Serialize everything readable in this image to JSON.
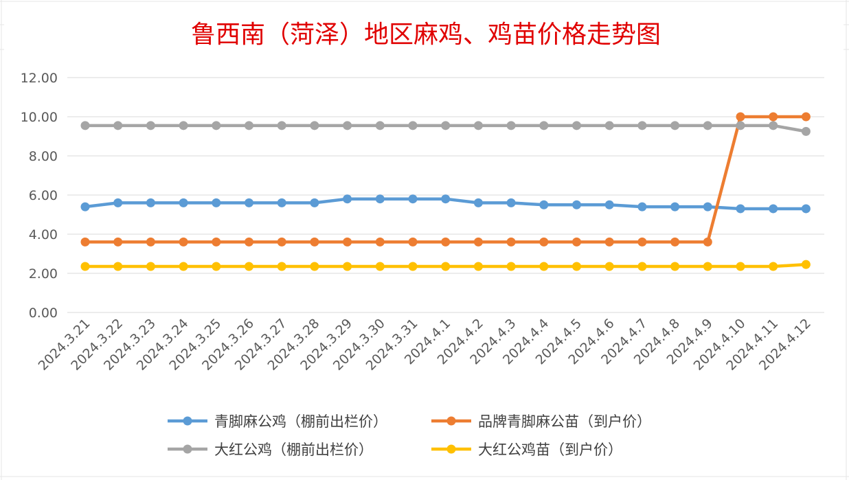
{
  "chart_data": {
    "type": "line",
    "title": "鲁西南（菏泽）地区麻鸡、鸡苗价格走势图",
    "xlabel": "",
    "ylabel": "",
    "ylim": [
      0,
      12
    ],
    "yticks": [
      "0.00",
      "2.00",
      "4.00",
      "6.00",
      "8.00",
      "10.00",
      "12.00"
    ],
    "grid": true,
    "legend_position": "bottom",
    "categories": [
      "2024.3.21",
      "2024.3.22",
      "2024.3.23",
      "2024.3.24",
      "2024.3.25",
      "2024.3.26",
      "2024.3.27",
      "2024.3.28",
      "2024.3.29",
      "2024.3.30",
      "2024.3.31",
      "2024.4.1",
      "2024.4.2",
      "2024.4.3",
      "2024.4.4",
      "2024.4.5",
      "2024.4.6",
      "2024.4.7",
      "2024.4.8",
      "2024.4.9",
      "2024.4.10",
      "2024.4.11",
      "2024.4.12"
    ],
    "series": [
      {
        "name": "青脚麻公鸡（棚前出栏价）",
        "color": "#5b9bd5",
        "values": [
          5.4,
          5.6,
          5.6,
          5.6,
          5.6,
          5.6,
          5.6,
          5.6,
          5.8,
          5.8,
          5.8,
          5.8,
          5.6,
          5.6,
          5.5,
          5.5,
          5.5,
          5.4,
          5.4,
          5.4,
          5.3,
          5.3,
          5.3
        ]
      },
      {
        "name": "品牌青脚麻公苗（到户价）",
        "color": "#ed7d31",
        "values": [
          3.6,
          3.6,
          3.6,
          3.6,
          3.6,
          3.6,
          3.6,
          3.6,
          3.6,
          3.6,
          3.6,
          3.6,
          3.6,
          3.6,
          3.6,
          3.6,
          3.6,
          3.6,
          3.6,
          3.6,
          10.0,
          10.0,
          10.0
        ]
      },
      {
        "name": "大红公鸡（棚前出栏价）",
        "color": "#a5a5a5",
        "values": [
          9.55,
          9.55,
          9.55,
          9.55,
          9.55,
          9.55,
          9.55,
          9.55,
          9.55,
          9.55,
          9.55,
          9.55,
          9.55,
          9.55,
          9.55,
          9.55,
          9.55,
          9.55,
          9.55,
          9.55,
          9.55,
          9.55,
          9.25
        ]
      },
      {
        "name": "大红公鸡苗（到户价）",
        "color": "#ffc000",
        "values": [
          2.35,
          2.35,
          2.35,
          2.35,
          2.35,
          2.35,
          2.35,
          2.35,
          2.35,
          2.35,
          2.35,
          2.35,
          2.35,
          2.35,
          2.35,
          2.35,
          2.35,
          2.35,
          2.35,
          2.35,
          2.35,
          2.35,
          2.45
        ]
      }
    ]
  }
}
